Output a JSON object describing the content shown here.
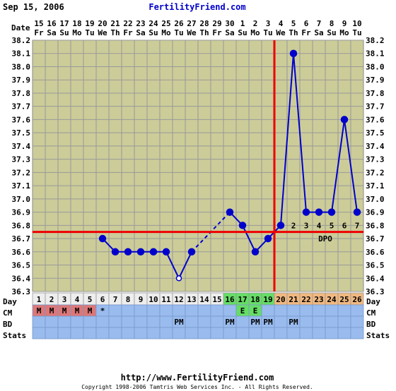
{
  "header": {
    "date": "Sep 15, 2006",
    "site": "FertilityFriend.com"
  },
  "footer": {
    "url": "http://www.FertilityFriend.com",
    "copyright": "Copyright 1998-2006 Tamtris Web Services Inc. - All Rights Reserved."
  },
  "row_labels": {
    "date": "Date",
    "day": "Day",
    "cm": "CM",
    "bd": "BD",
    "stats": "Stats"
  },
  "dpo_label": "DPO",
  "colors": {
    "temp_line": "#0000cc",
    "coverline": "#ee0000",
    "ovulation": "#ee0000",
    "plot_bg": "#cccc99",
    "grid": "#999999",
    "day_row_pre": "#eeeeee",
    "day_row_fertile": "#66dd66",
    "day_row_luteal": "#f0b880",
    "cm_row": "#99bbee",
    "cm_mark": "#dd7777",
    "cm_fertile": "#66dd66",
    "header_text": "#0000cc"
  },
  "chart_data": {
    "type": "line",
    "title": "",
    "ylim": [
      36.3,
      38.2
    ],
    "y_ticks": [
      "36.3",
      "36.4",
      "36.5",
      "36.6",
      "36.7",
      "36.8",
      "36.9",
      "37.0",
      "37.1",
      "37.2",
      "37.3",
      "37.4",
      "37.5",
      "37.6",
      "37.7",
      "37.8",
      "37.9",
      "38.0",
      "38.1",
      "38.2"
    ],
    "dates": [
      "15",
      "16",
      "17",
      "18",
      "19",
      "20",
      "21",
      "22",
      "23",
      "24",
      "25",
      "26",
      "27",
      "28",
      "29",
      "30",
      "1",
      "2",
      "3",
      "4",
      "5",
      "6",
      "7",
      "8",
      "9",
      "10"
    ],
    "weekdays": [
      "Fr",
      "Sa",
      "Su",
      "Mo",
      "Tu",
      "We",
      "Th",
      "Fr",
      "Sa",
      "Su",
      "Mo",
      "Tu",
      "We",
      "Th",
      "Fr",
      "Sa",
      "Su",
      "Mo",
      "Tu",
      "We",
      "Th",
      "Fr",
      "Sa",
      "Su",
      "Mo",
      "Tu"
    ],
    "cycle_days": [
      1,
      2,
      3,
      4,
      5,
      6,
      7,
      8,
      9,
      10,
      11,
      12,
      13,
      14,
      15,
      16,
      17,
      18,
      19,
      20,
      21,
      22,
      23,
      24,
      25,
      26
    ],
    "temps": [
      null,
      null,
      null,
      null,
      null,
      36.7,
      36.6,
      36.6,
      36.6,
      36.6,
      36.6,
      36.4,
      36.6,
      null,
      null,
      36.9,
      36.8,
      36.6,
      36.7,
      36.8,
      38.1,
      36.9,
      36.9,
      36.9,
      37.6,
      36.9
    ],
    "open_point_days": [
      12
    ],
    "coverline": 36.75,
    "ovulation_day": 19,
    "dpo": [
      "",
      "",
      "",
      "",
      "",
      "",
      "",
      "",
      "",
      "",
      "",
      "",
      "",
      "",
      "",
      "",
      "",
      "",
      "",
      "",
      "2",
      "3",
      "4",
      "5",
      "6",
      "7"
    ],
    "cm": [
      "M",
      "M",
      "M",
      "M",
      "M",
      "*",
      "",
      "",
      "",
      "",
      "",
      "",
      "",
      "",
      "",
      "",
      "E",
      "E",
      "",
      "",
      "",
      "",
      "",
      "",
      "",
      ""
    ],
    "bd": [
      "",
      "",
      "",
      "",
      "",
      "",
      "",
      "",
      "",
      "",
      "",
      "PM",
      "",
      "",
      "",
      "PM",
      "",
      "PM",
      "PM",
      "",
      "PM",
      "",
      "",
      "",
      "",
      ""
    ],
    "fertile_days": [
      16,
      17,
      18,
      19
    ],
    "luteal_start_day": 20
  }
}
